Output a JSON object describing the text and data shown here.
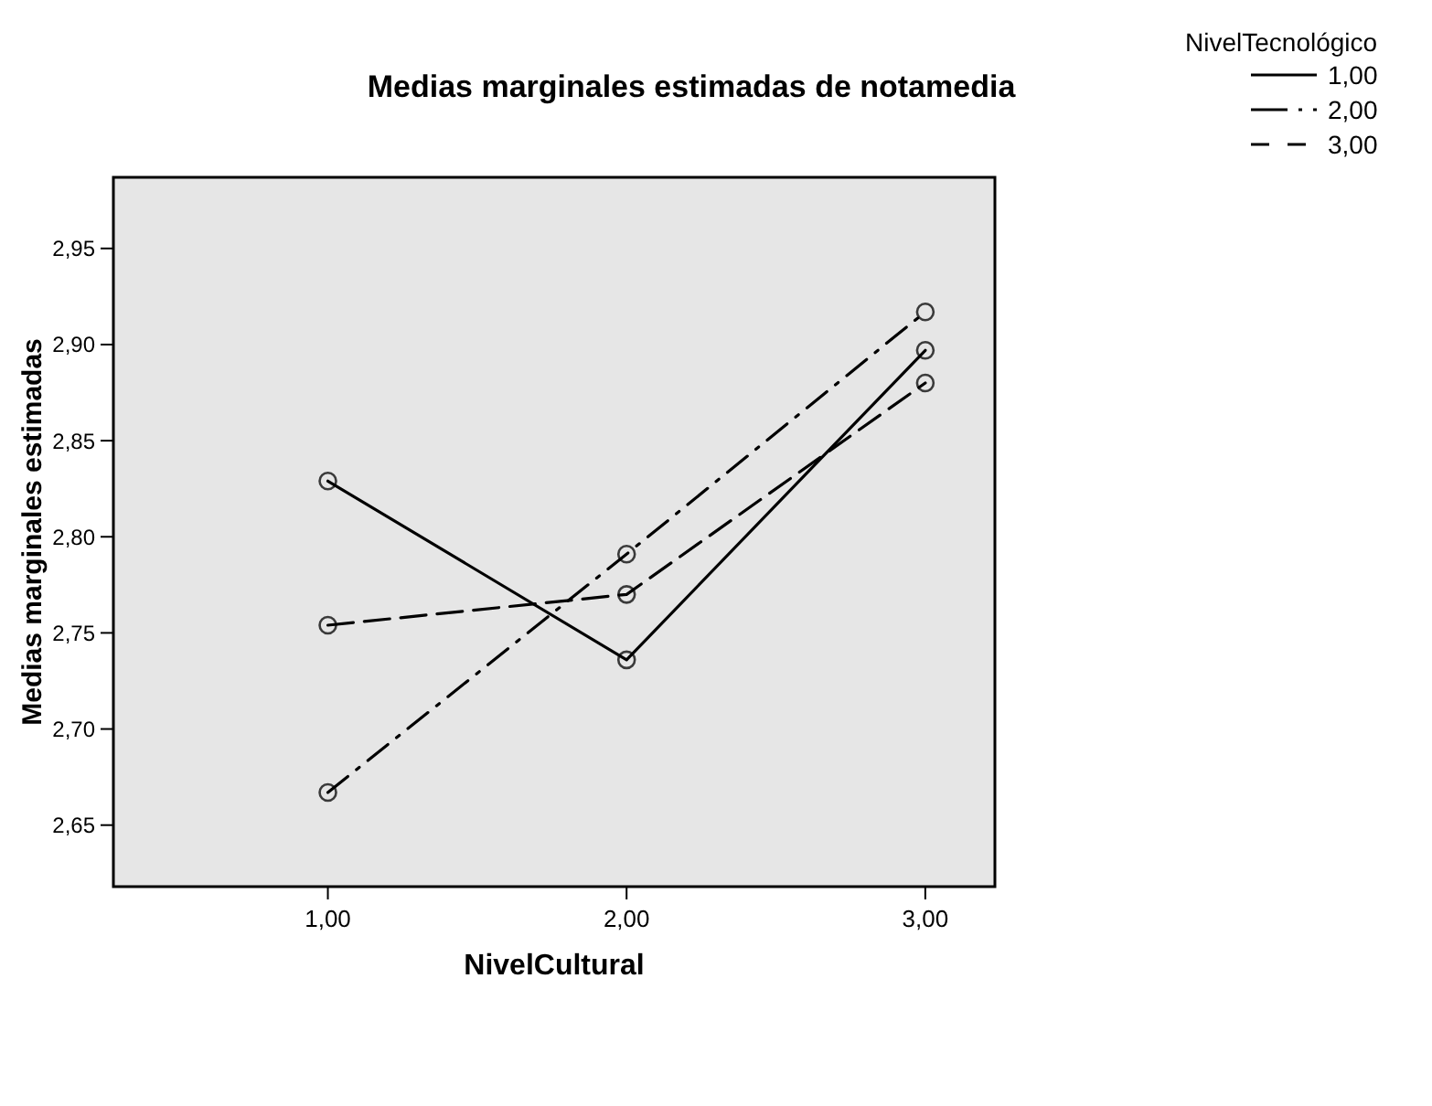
{
  "chart_data": {
    "type": "line",
    "title": "Medias marginales estimadas de notamedia",
    "xlabel": "NivelCultural",
    "ylabel": "Medias marginales estimadas",
    "legend_title": "NivelTecnológico",
    "categories": [
      "1,00",
      "2,00",
      "3,00"
    ],
    "series": [
      {
        "name": "1,00",
        "color": "#000000",
        "line_style": "solid",
        "values": [
          2.829,
          2.736,
          2.897
        ]
      },
      {
        "name": "2,00",
        "color": "#000000",
        "line_style": "dashdot",
        "values": [
          2.667,
          2.791,
          2.917
        ]
      },
      {
        "name": "3,00",
        "color": "#000000",
        "line_style": "dashed",
        "values": [
          2.754,
          2.77,
          2.88
        ]
      }
    ],
    "ylim": [
      2.618,
      2.987
    ],
    "yticks": [
      {
        "value": 2.65,
        "label": "2,65"
      },
      {
        "value": 2.7,
        "label": "2,70"
      },
      {
        "value": 2.75,
        "label": "2,75"
      },
      {
        "value": 2.8,
        "label": "2,80"
      },
      {
        "value": 2.85,
        "label": "2,85"
      },
      {
        "value": 2.9,
        "label": "2,90"
      },
      {
        "value": 2.95,
        "label": "2,95"
      }
    ],
    "marker": "circle",
    "grid": false,
    "legend": "top right"
  }
}
